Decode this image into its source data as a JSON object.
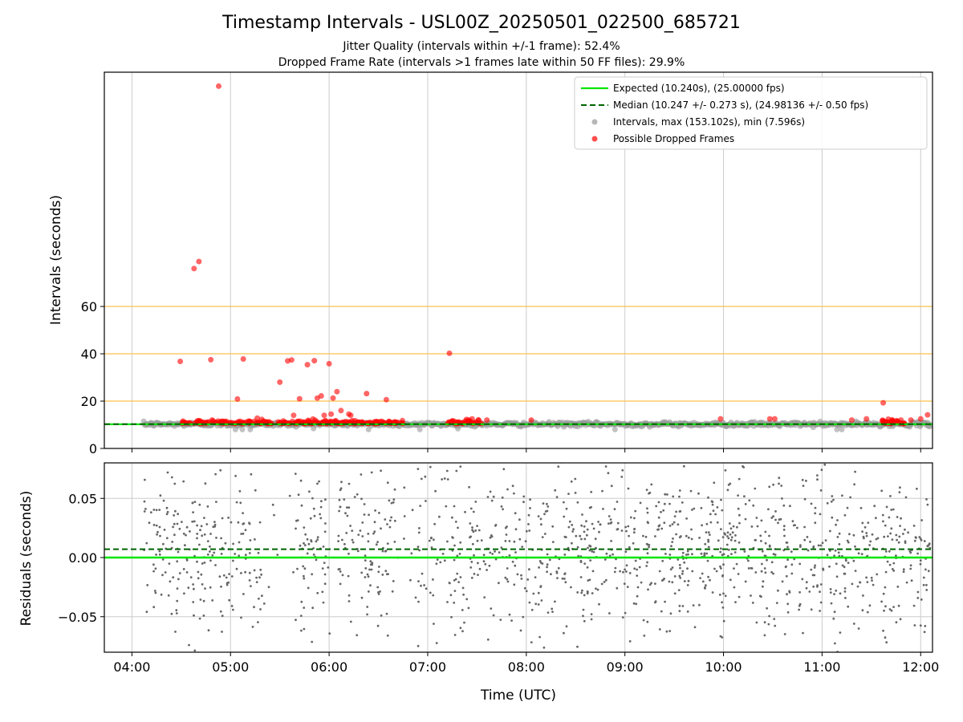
{
  "figure": {
    "title": "Timestamp Intervals - USL00Z_20250501_022500_685721",
    "subtitle_1": "Jitter Quality (intervals within +/-1 frame): 52.4%",
    "subtitle_2": "Dropped Frame Rate (intervals >1 frames late within 50 FF files): 29.9%"
  },
  "colors": {
    "expected": "#00e600",
    "median": "#006400",
    "intervals": "#999999",
    "dropped": "#ff0000",
    "residuals": "#666666",
    "threshold_lines": "#ffc04d",
    "grid": "#cccccc"
  },
  "chart_data": [
    {
      "type": "scatter",
      "name": "intervals",
      "xlabel": "",
      "ylabel": "Intervals (seconds)",
      "x_unit": "hours UTC",
      "xlim": [
        3.72,
        12.12
      ],
      "ylim": [
        0,
        159
      ],
      "x_ticks": [
        4,
        5,
        6,
        7,
        8,
        9,
        10,
        11,
        12
      ],
      "y_ticks": [
        0,
        20,
        40,
        60
      ],
      "y_tick_labels": [
        "0",
        "20",
        "40",
        "60"
      ],
      "horizontal_lines": [
        {
          "y": 20,
          "color": "#ffc04d"
        },
        {
          "y": 40,
          "color": "#ffc04d"
        },
        {
          "y": 60,
          "color": "#ffc04d"
        }
      ],
      "grid": "vertical",
      "legend_placement": "upper right",
      "legend": [
        {
          "label": "Expected (10.240s), (25.00000 fps)",
          "style": "solid-line"
        },
        {
          "label": "Median (10.247 +/- 0.273 s), (24.98136 +/- 0.50 fps)",
          "style": "dashed-line"
        },
        {
          "label": "Intervals, max (153.102s), min (7.596s)",
          "style": "gray-dot"
        },
        {
          "label": "Possible Dropped Frames",
          "style": "red-dot"
        }
      ],
      "expected_interval": 10.24,
      "median_interval": 10.247,
      "series": [
        {
          "name": "Intervals",
          "color": "#999999",
          "x_range": [
            4.12,
            12.1
          ],
          "typical_y": 10.24,
          "spread": 1.2
        },
        {
          "name": "Possible Dropped Frames",
          "color": "#ff0000",
          "points": [
            [
              4.88,
              153.1
            ],
            [
              4.63,
              76.0
            ],
            [
              4.68,
              79.0
            ],
            [
              4.49,
              36.8
            ],
            [
              4.8,
              37.5
            ],
            [
              5.13,
              37.8
            ],
            [
              5.07,
              20.9
            ],
            [
              5.5,
              28.0
            ],
            [
              5.58,
              37.0
            ],
            [
              5.62,
              37.4
            ],
            [
              5.64,
              14.0
            ],
            [
              5.7,
              21.0
            ],
            [
              5.78,
              35.4
            ],
            [
              5.85,
              37.1
            ],
            [
              5.88,
              21.3
            ],
            [
              5.92,
              22.2
            ],
            [
              5.95,
              14.0
            ],
            [
              6.02,
              14.5
            ],
            [
              6.0,
              35.8
            ],
            [
              6.04,
              21.3
            ],
            [
              6.08,
              24.0
            ],
            [
              6.12,
              16.0
            ],
            [
              6.2,
              14.5
            ],
            [
              6.22,
              14.0
            ],
            [
              6.38,
              23.2
            ],
            [
              6.58,
              20.6
            ],
            [
              7.22,
              40.2
            ],
            [
              11.62,
              19.3
            ],
            [
              12.07,
              14.2
            ],
            [
              9.97,
              12.5
            ],
            [
              10.47,
              12.5
            ],
            [
              10.52,
              12.5
            ],
            [
              8.05,
              12.0
            ],
            [
              7.6,
              12.0
            ],
            [
              7.45,
              12.5
            ],
            [
              11.3,
              12.0
            ],
            [
              11.45,
              12.5
            ],
            [
              11.9,
              12.0
            ],
            [
              12.0,
              12.5
            ],
            [
              11.8,
              12.0
            ]
          ],
          "dense_clusters": [
            [
              4.5,
              6.75
            ],
            [
              7.2,
              7.55
            ],
            [
              11.6,
              11.85
            ]
          ]
        }
      ]
    },
    {
      "type": "scatter",
      "name": "residuals",
      "xlabel": "Time (UTC)",
      "ylabel": "Residuals (seconds)",
      "x_unit": "hours UTC",
      "xlim": [
        3.72,
        12.12
      ],
      "ylim": [
        -0.08,
        0.08
      ],
      "x_ticks": [
        4,
        5,
        6,
        7,
        8,
        9,
        10,
        11,
        12
      ],
      "x_tick_labels": [
        "04:00",
        "05:00",
        "06:00",
        "07:00",
        "08:00",
        "09:00",
        "10:00",
        "11:00",
        "12:00"
      ],
      "y_ticks": [
        -0.05,
        0,
        0.05
      ],
      "y_tick_labels": [
        "−0.05",
        "0.00",
        "0.05"
      ],
      "grid": "both",
      "expected_residual": 0,
      "median_residual": 0.007,
      "series": [
        {
          "name": "Residuals",
          "color": "#666666",
          "x_range": [
            4.12,
            12.1
          ],
          "gaps": [
            [
              5.32,
              5.62
            ],
            [
              6.0,
              6.08
            ],
            [
              6.68,
              6.9
            ]
          ],
          "spread": 0.045
        }
      ]
    }
  ]
}
